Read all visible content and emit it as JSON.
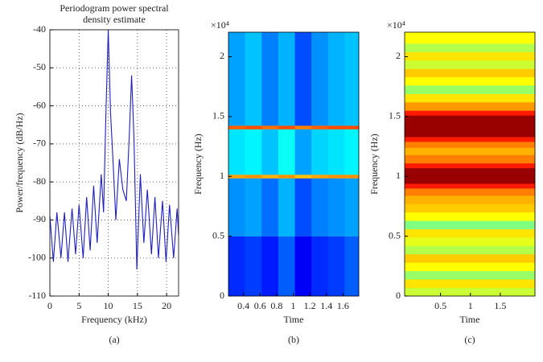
{
  "chart_data": [
    {
      "type": "line",
      "title": "Periodogram power spectral density estimate",
      "x_label": "Frequency (kHz)",
      "y_label": "Power/frequency (dB/Hz)",
      "caption": "(a)",
      "xlim": [
        0,
        22.05
      ],
      "ylim": [
        -110,
        -40
      ],
      "xticks": [
        0,
        5,
        10,
        15,
        20
      ],
      "yticks": [
        -110,
        -100,
        -90,
        -80,
        -70,
        -60,
        -50,
        -40
      ],
      "grid": true,
      "color": "#1f1fbf",
      "x": [
        0,
        0.6,
        1.2,
        1.9,
        2.5,
        3.1,
        3.8,
        4.4,
        5.0,
        5.7,
        6.3,
        6.9,
        7.5,
        8.1,
        8.8,
        9.2,
        9.6,
        10,
        10.4,
        10.8,
        11.3,
        11.9,
        12.5,
        13.1,
        13.6,
        14,
        14.4,
        14.9,
        15.5,
        16.1,
        16.7,
        17.4,
        18,
        18.6,
        19.3,
        19.9,
        20.5,
        21.2,
        21.8,
        22.05
      ],
      "values": [
        -89,
        -101,
        -88,
        -100,
        -88,
        -101,
        -87,
        -99,
        -86,
        -100,
        -84,
        -98,
        -81,
        -96,
        -78,
        -88,
        -62,
        -40,
        -62,
        -74,
        -90,
        -74,
        -82,
        -85,
        -68,
        -52,
        -68,
        -103,
        -78,
        -96,
        -82,
        -99,
        -84,
        -100,
        -85,
        -101,
        -86,
        -100,
        -87,
        -94
      ]
    },
    {
      "type": "heatmap",
      "x_label": "Time",
      "y_label": "Frequency (Hz)",
      "caption": "(b)",
      "y_exponent_label": "×10⁴",
      "colormap": "jet",
      "clim": [
        -160,
        -40
      ],
      "xlim": [
        0.22,
        1.79
      ],
      "ylim": [
        0,
        22050
      ],
      "xticks": [
        0.4,
        0.6,
        0.8,
        1,
        1.2,
        1.4,
        1.6
      ],
      "yticks": [
        0,
        {
          "value": 5000,
          "label": "0.5"
        },
        {
          "value": 10000,
          "label": "1"
        },
        {
          "value": 15000,
          "label": "1.5"
        },
        {
          "value": 20000,
          "label": "2"
        }
      ],
      "x_bins": [
        0.22,
        0.42,
        0.62,
        0.82,
        1.02,
        1.22,
        1.42,
        1.62,
        1.79
      ],
      "y_bins": [
        0,
        5000,
        9850,
        10150,
        13950,
        14250,
        22050
      ],
      "z": [
        [
          -140,
          -138,
          -142,
          -134,
          -146,
          -140,
          -138,
          -134
        ],
        [
          -128,
          -126,
          -132,
          -124,
          -136,
          -130,
          -128,
          -126
        ],
        [
          -74,
          -72,
          -76,
          -72,
          -78,
          -74,
          -72,
          -72
        ],
        [
          -118,
          -116,
          -122,
          -114,
          -126,
          -120,
          -118,
          -116
        ],
        [
          -66,
          -64,
          -68,
          -64,
          -70,
          -66,
          -64,
          -64
        ],
        [
          -126,
          -122,
          -130,
          -124,
          -136,
          -128,
          -124,
          -122
        ]
      ]
    },
    {
      "type": "heatmap",
      "x_label": "Time",
      "y_label": "Frequency (Hz)",
      "caption": "(c)",
      "y_exponent_label": "×10⁴",
      "colormap": "jet",
      "clim": [
        -100,
        -20
      ],
      "xlim": [
        -0.1,
        2.08
      ],
      "ylim": [
        0,
        22050
      ],
      "xticks": [
        0.5,
        1,
        1.5
      ],
      "yticks": [
        0,
        {
          "value": 5000,
          "label": "0.5"
        },
        {
          "value": 10000,
          "label": "1"
        },
        {
          "value": 15000,
          "label": "1.5"
        },
        {
          "value": 20000,
          "label": "2"
        }
      ],
      "x_bins": [
        -0.1,
        2.08
      ],
      "y_bins": [
        0,
        700,
        1400,
        2100,
        2800,
        3500,
        4200,
        4900,
        5600,
        6300,
        7000,
        7700,
        8400,
        9000,
        9400,
        10700,
        11100,
        11800,
        12400,
        12900,
        13300,
        15100,
        15500,
        16200,
        16900,
        17600,
        18300,
        19000,
        19700,
        20400,
        21100,
        22050
      ],
      "z": [
        [
          -54
        ],
        [
          -48
        ],
        [
          -58
        ],
        [
          -50
        ],
        [
          -46
        ],
        [
          -56
        ],
        [
          -52
        ],
        [
          -48
        ],
        [
          -60
        ],
        [
          -50
        ],
        [
          -46
        ],
        [
          -44
        ],
        [
          -40
        ],
        [
          -32
        ],
        [
          -22
        ],
        [
          -32
        ],
        [
          -40
        ],
        [
          -44
        ],
        [
          -40
        ],
        [
          -32
        ],
        [
          -22
        ],
        [
          -32
        ],
        [
          -42
        ],
        [
          -48
        ],
        [
          -58
        ],
        [
          -50
        ],
        [
          -46
        ],
        [
          -54
        ],
        [
          -48
        ],
        [
          -56
        ],
        [
          -50
        ]
      ]
    }
  ]
}
